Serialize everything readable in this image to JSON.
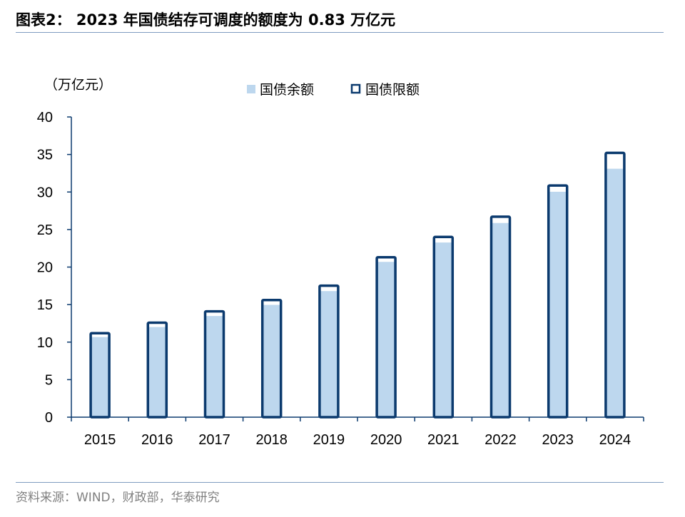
{
  "title": "图表2： 2023 年国债结存可调度的额度为 0.83 万亿元",
  "source": "资料来源：WIND，财政部，华泰研究",
  "colors": {
    "balance": "#bdd7ee",
    "limit": "#0b3a6e",
    "axis": "#0b3a6e"
  },
  "chart_data": {
    "type": "bar",
    "title": "2023 年国债结存可调度的额度为 0.83 万亿元",
    "unit_label": "（万亿元）",
    "categories": [
      "2015",
      "2016",
      "2017",
      "2018",
      "2019",
      "2020",
      "2021",
      "2022",
      "2023",
      "2024"
    ],
    "series": [
      {
        "name": "国债余额",
        "values": [
          10.67,
          12.01,
          13.48,
          14.96,
          16.8,
          20.69,
          23.27,
          25.87,
          30.03,
          33.1
        ]
      },
      {
        "name": "国债限额",
        "values": [
          11.19,
          12.59,
          14.1,
          15.61,
          17.52,
          21.31,
          24.01,
          26.71,
          30.87,
          35.21
        ]
      }
    ],
    "yticks": [
      "0",
      "5",
      "10",
      "15",
      "20",
      "25",
      "30",
      "35",
      "40"
    ],
    "ylim": [
      0,
      40
    ],
    "legend": "top-right",
    "grid": false
  }
}
